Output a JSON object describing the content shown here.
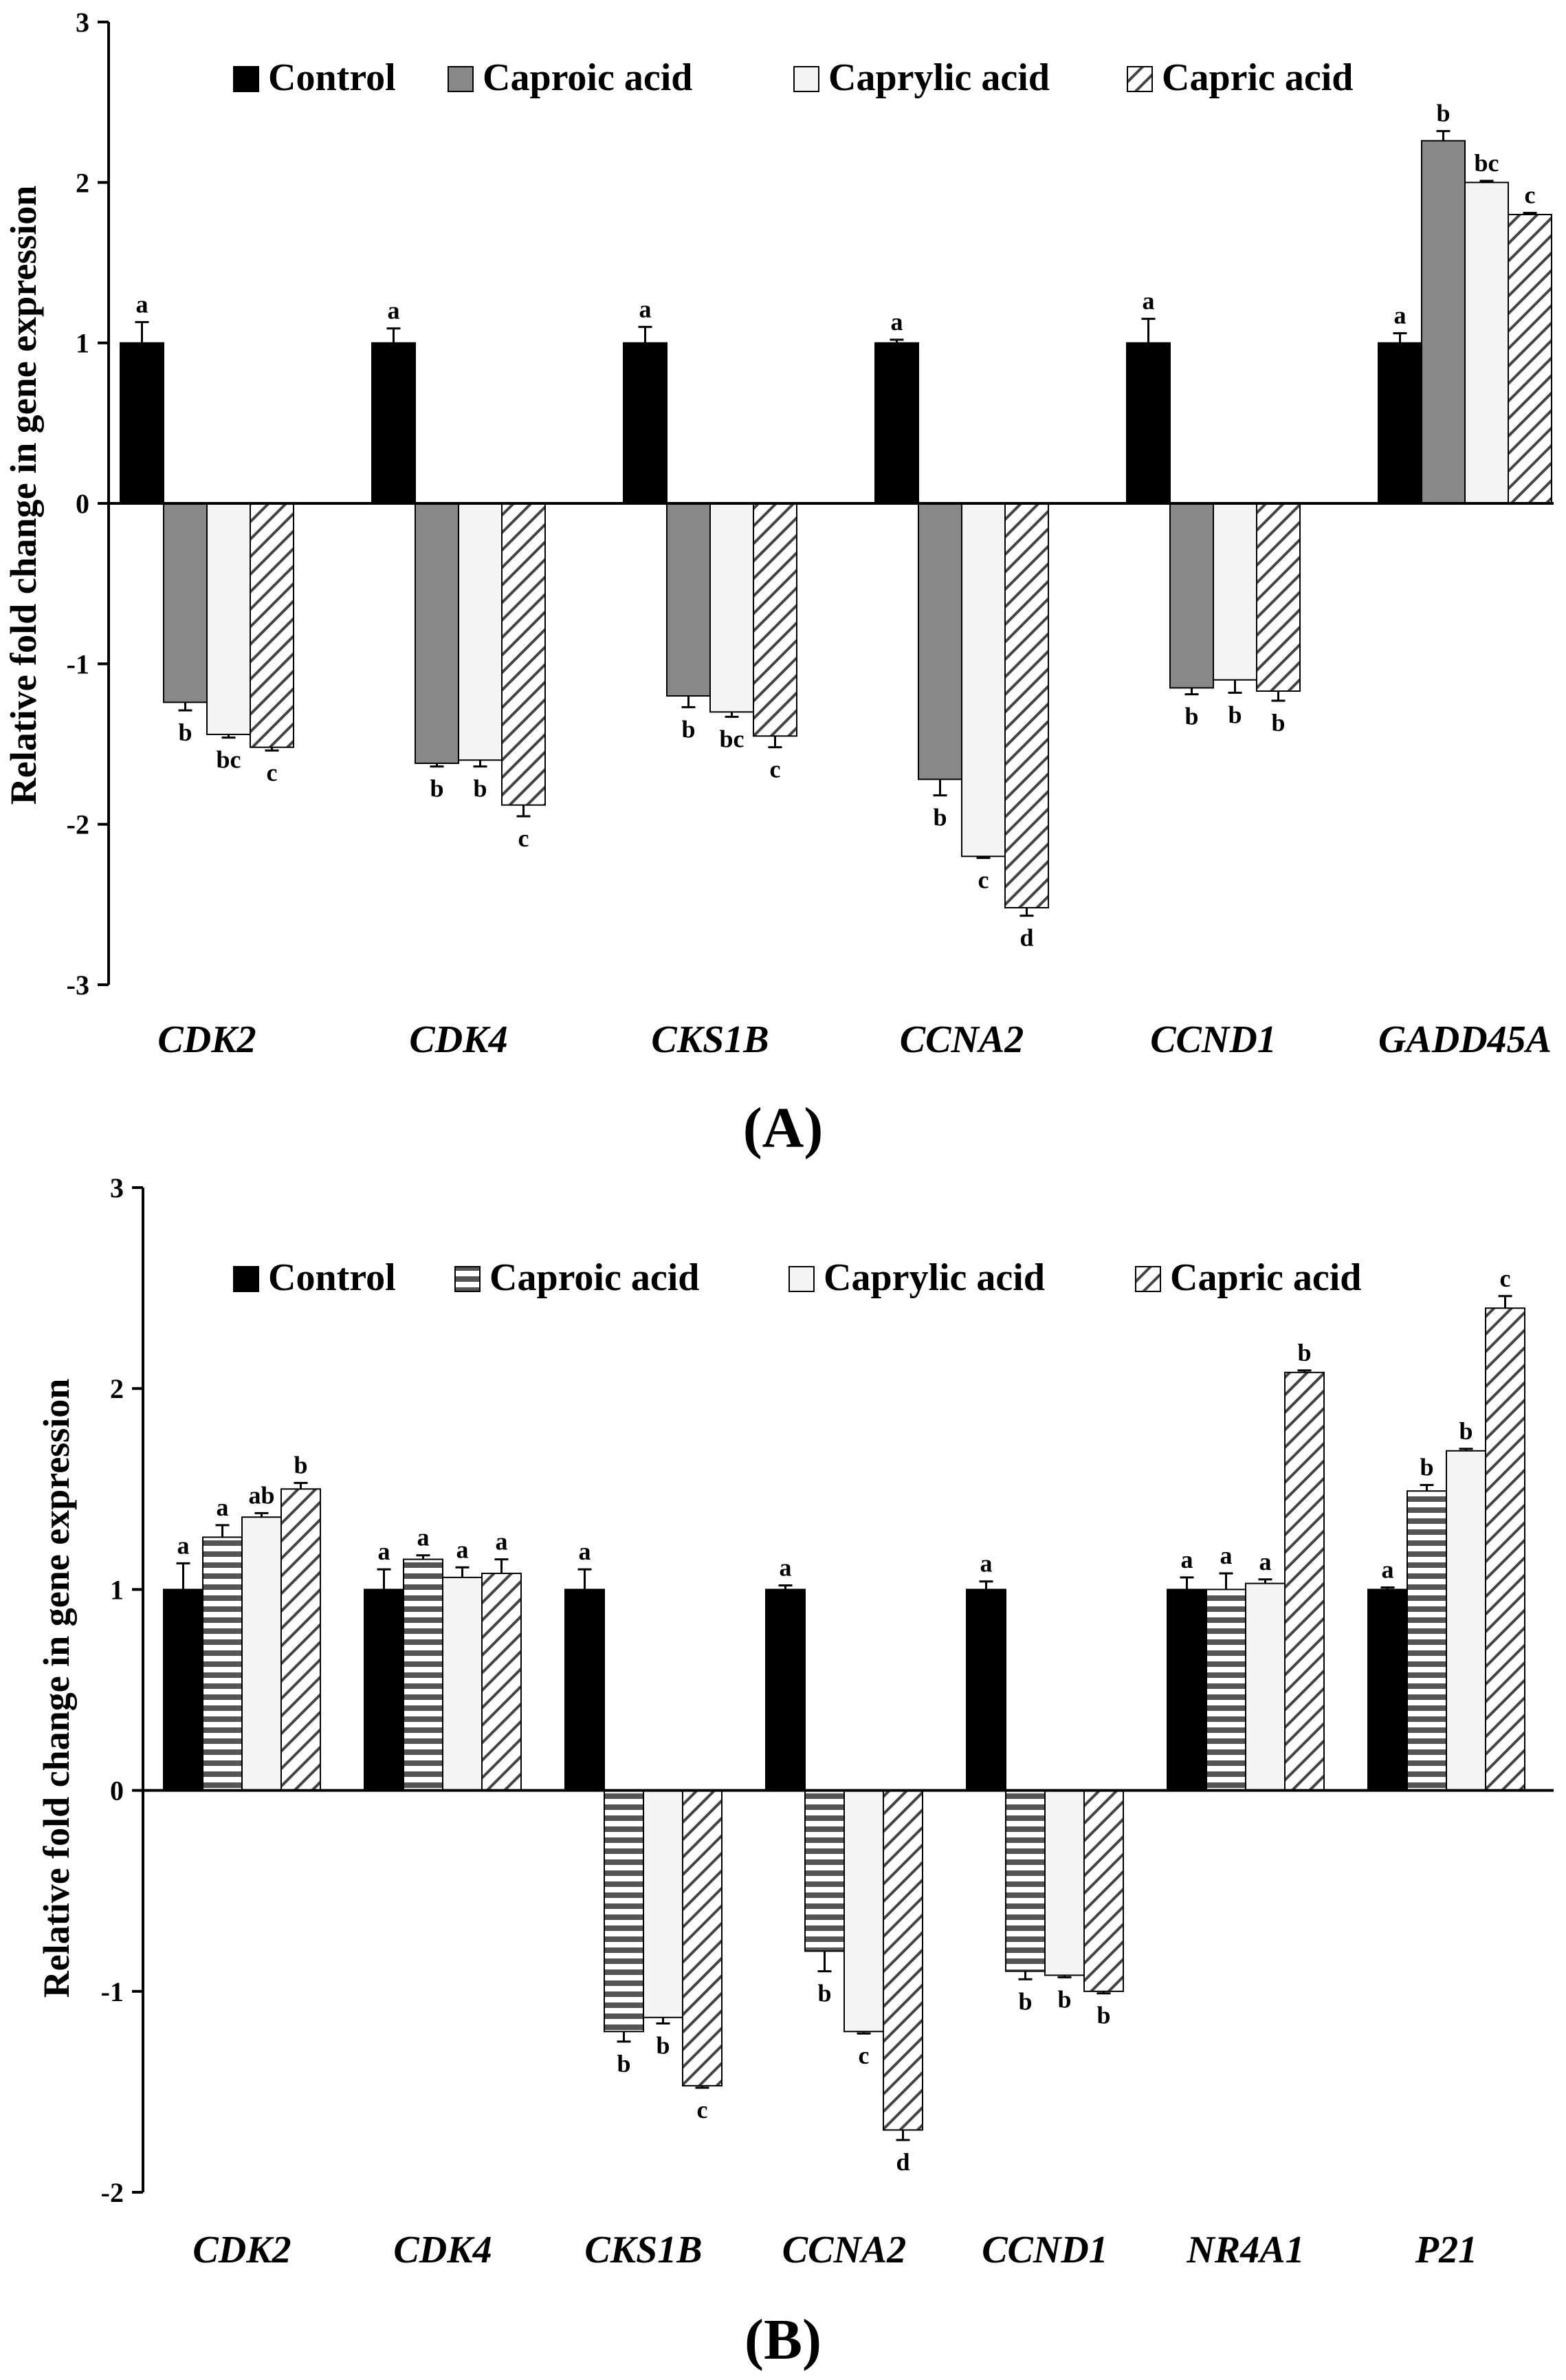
{
  "chart_data": [
    {
      "panel_label": "(A)",
      "type": "bar",
      "title": "",
      "xlabel": "",
      "ylabel": "Relative fold change in gene expression",
      "ylim": [
        -3,
        3
      ],
      "yticks": [
        "3",
        "2",
        "1",
        "0",
        "-1",
        "-2",
        "-3"
      ],
      "categories": [
        "CDK2",
        "CDK4",
        "CKS1B",
        "CCNA2",
        "CCND1",
        "GADD45A"
      ],
      "legend_position": "top",
      "series": [
        {
          "name": "Control",
          "fill": "black",
          "values": [
            1,
            1,
            1,
            1,
            1,
            1
          ],
          "errors": [
            0.13,
            0.09,
            0.1,
            0.02,
            0.15,
            0.06
          ],
          "labels": [
            "a",
            "a",
            "a",
            "a",
            "a",
            "a"
          ]
        },
        {
          "name": "Caproic acid",
          "fill": "gray",
          "values": [
            -1.24,
            -1.62,
            -1.2,
            -1.72,
            -1.15,
            2.26
          ],
          "errors": [
            0.05,
            0.02,
            0.07,
            0.1,
            0.04,
            0.06
          ],
          "labels": [
            "b",
            "b",
            "b",
            "b",
            "b",
            "b"
          ]
        },
        {
          "name": "Caprylic acid",
          "fill": "white",
          "values": [
            -1.44,
            -1.6,
            -1.3,
            -2.2,
            -1.1,
            2.0
          ],
          "errors": [
            0.02,
            0.04,
            0.03,
            0.01,
            0.08,
            0.01
          ],
          "labels": [
            "bc",
            "b",
            "bc",
            "c",
            "b",
            "bc"
          ]
        },
        {
          "name": "Capric acid",
          "fill": "hatch",
          "values": [
            -1.52,
            -1.88,
            -1.45,
            -2.52,
            -1.17,
            1.8
          ],
          "errors": [
            0.02,
            0.07,
            0.07,
            0.05,
            0.06,
            0.01
          ],
          "labels": [
            "c",
            "c",
            "c",
            "d",
            "b",
            "c"
          ]
        }
      ]
    },
    {
      "panel_label": "(B)",
      "type": "bar",
      "title": "",
      "xlabel": "",
      "ylabel": "Relative fold change in gene expression",
      "ylim": [
        -2,
        3
      ],
      "yticks": [
        "3",
        "2",
        "1",
        "0",
        "-1",
        "-2"
      ],
      "categories": [
        "CDK2",
        "CDK4",
        "CKS1B",
        "CCNA2",
        "CCND1",
        "NR4A1",
        "P21"
      ],
      "legend_position": "top",
      "series": [
        {
          "name": "Control",
          "fill": "black",
          "values": [
            1,
            1,
            1,
            1,
            1,
            1,
            1
          ],
          "errors": [
            0.13,
            0.1,
            0.1,
            0.02,
            0.04,
            0.06,
            0.01
          ],
          "labels": [
            "a",
            "a",
            "a",
            "a",
            "a",
            "a",
            "a"
          ]
        },
        {
          "name": "Caproic acid",
          "fill": "stripes",
          "values": [
            1.26,
            1.15,
            -1.2,
            -0.8,
            -0.9,
            1.0,
            1.49
          ],
          "errors": [
            0.06,
            0.02,
            0.05,
            0.1,
            0.04,
            0.08,
            0.03
          ],
          "labels": [
            "a",
            "a",
            "b",
            "b",
            "b",
            "a",
            "b"
          ]
        },
        {
          "name": "Caprylic acid",
          "fill": "white",
          "values": [
            1.36,
            1.06,
            -1.13,
            -1.2,
            -0.92,
            1.03,
            1.69
          ],
          "errors": [
            0.02,
            0.05,
            0.03,
            0.01,
            0.01,
            0.02,
            0.01
          ],
          "labels": [
            "ab",
            "a",
            "b",
            "c",
            "b",
            "a",
            "b"
          ]
        },
        {
          "name": "Capric acid",
          "fill": "hatch",
          "values": [
            1.5,
            1.08,
            -1.47,
            -1.69,
            -1.0,
            2.08,
            2.4
          ],
          "errors": [
            0.03,
            0.07,
            0.01,
            0.05,
            0.01,
            0.01,
            0.06
          ],
          "labels": [
            "b",
            "a",
            "c",
            "d",
            "b",
            "b",
            "c"
          ]
        }
      ]
    }
  ]
}
